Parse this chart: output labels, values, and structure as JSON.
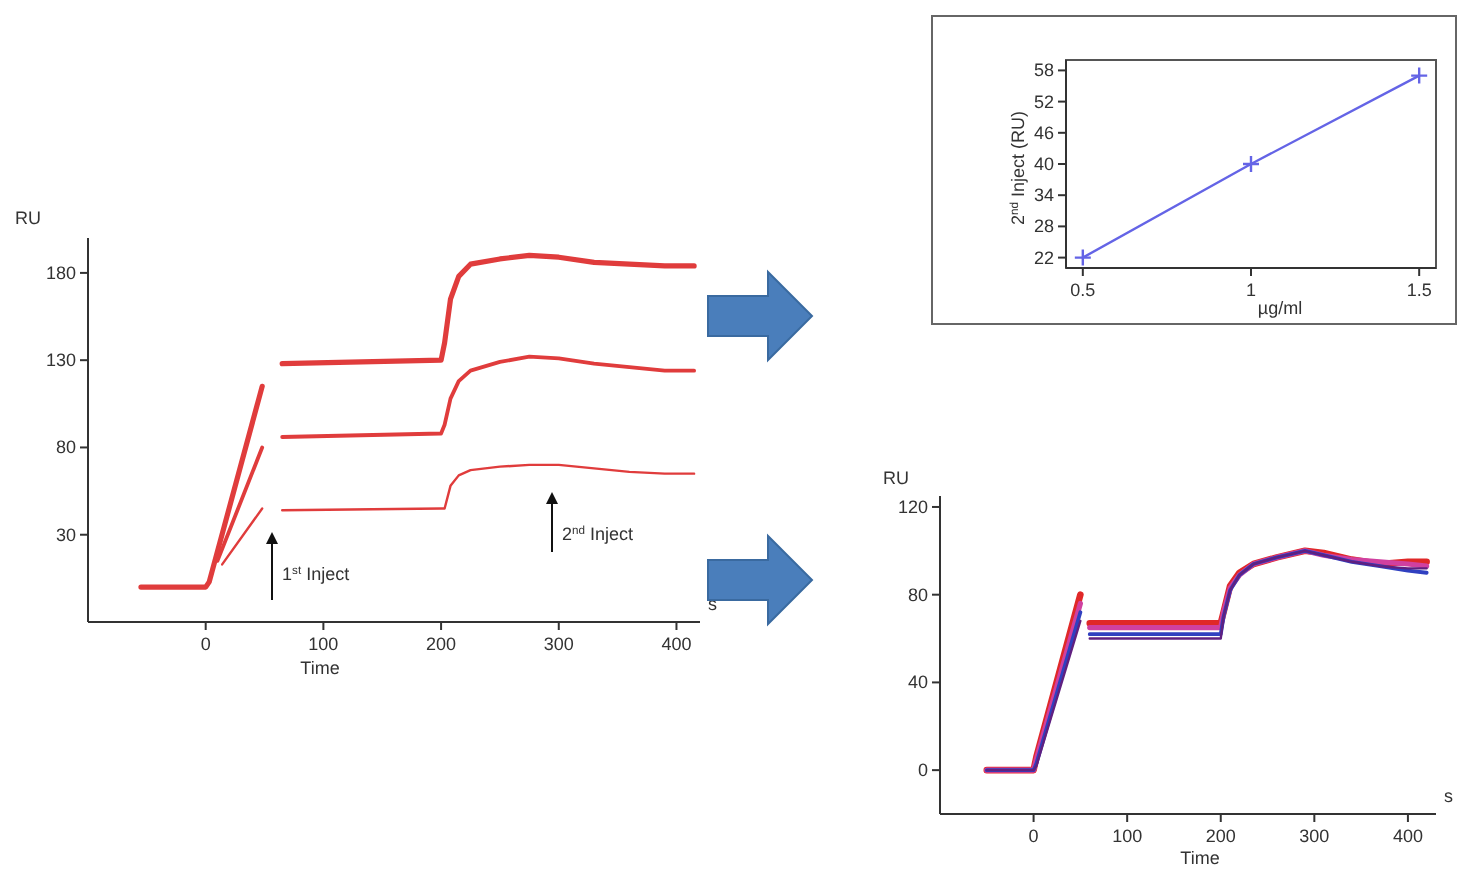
{
  "chart_data": [
    {
      "type": "line",
      "ylabel": "RU",
      "xlabel": "Time",
      "xlim": [
        -100,
        420
      ],
      "ylim": [
        -20,
        200
      ],
      "xticks": [
        0,
        100,
        200,
        300,
        400
      ],
      "yticks": [
        30,
        80,
        130,
        180
      ],
      "x": [
        -55,
        0,
        3,
        48,
        52,
        65,
        200,
        203,
        208,
        215,
        225,
        250,
        275,
        300,
        330,
        360,
        390,
        415
      ],
      "series": [
        {
          "color": "#e03c3c",
          "values": [
            0,
            0,
            3,
            115,
            null,
            128,
            130,
            140,
            165,
            178,
            185,
            188,
            190,
            189,
            186,
            185,
            184,
            184
          ]
        },
        {
          "color": "#e03c3c",
          "x": [
            10,
            48,
            52,
            65,
            200,
            203,
            208,
            215,
            225,
            250,
            275,
            300,
            330,
            360,
            390,
            415
          ],
          "values": [
            15,
            80,
            null,
            86,
            88,
            93,
            108,
            118,
            124,
            129,
            132,
            131,
            128,
            126,
            124,
            124
          ]
        },
        {
          "color": "#e03c3c",
          "x": [
            14,
            48,
            52,
            65,
            200,
            203,
            208,
            215,
            225,
            250,
            275,
            300,
            330,
            360,
            390,
            415
          ],
          "values": [
            13,
            45,
            null,
            44,
            45,
            45,
            58,
            64,
            67,
            69,
            70,
            70,
            68,
            66,
            65,
            65
          ]
        }
      ],
      "annotations": [
        "1$^{st}$ Inject",
        "2$^{nd}$ Inject",
        "s"
      ]
    },
    {
      "type": "line",
      "ylabel": "2$^{nd}$ Inject (RU)",
      "xlabel": "µg/ml",
      "xlim": [
        0.45,
        1.55
      ],
      "ylim": [
        20,
        60
      ],
      "xticks": [
        0.5,
        1,
        1.5
      ],
      "yticks": [
        22,
        28,
        34,
        40,
        46,
        52,
        58
      ],
      "marker": "cross",
      "x": [
        0.5,
        1,
        1.5
      ],
      "series": [
        {
          "color": "#6464e6",
          "values": [
            22,
            40,
            57
          ]
        }
      ]
    },
    {
      "type": "line",
      "ylabel": "RU",
      "xlabel": "Time",
      "xlim": [
        -100,
        430
      ],
      "ylim": [
        -20,
        125
      ],
      "xticks": [
        0,
        100,
        200,
        300,
        400
      ],
      "yticks": [
        0,
        40,
        80,
        120
      ],
      "x": [
        -50,
        0,
        3,
        50,
        55,
        60,
        200,
        203,
        210,
        220,
        235,
        260,
        290,
        310,
        340,
        370,
        400,
        420
      ],
      "series": [
        {
          "color": "#e02828",
          "values": [
            0,
            0,
            6,
            80,
            null,
            67,
            67,
            72,
            84,
            90,
            94,
            97,
            100,
            99,
            96,
            94,
            95,
            95
          ]
        },
        {
          "color": "#d040a0",
          "values": [
            0,
            0,
            5,
            76,
            null,
            65,
            65,
            72,
            83,
            89,
            94,
            97,
            100,
            98,
            96,
            95,
            94,
            93
          ]
        },
        {
          "color": "#3040c0",
          "values": [
            0,
            0,
            3,
            72,
            null,
            62,
            62,
            70,
            82,
            89,
            94,
            97,
            100,
            98,
            95,
            93,
            91,
            90
          ]
        },
        {
          "color": "#602080",
          "values": [
            0,
            0,
            2,
            68,
            null,
            60,
            60,
            70,
            82,
            89,
            94,
            97,
            100,
            98,
            95,
            93,
            92,
            92
          ]
        }
      ],
      "annotations": [
        "s"
      ]
    }
  ]
}
